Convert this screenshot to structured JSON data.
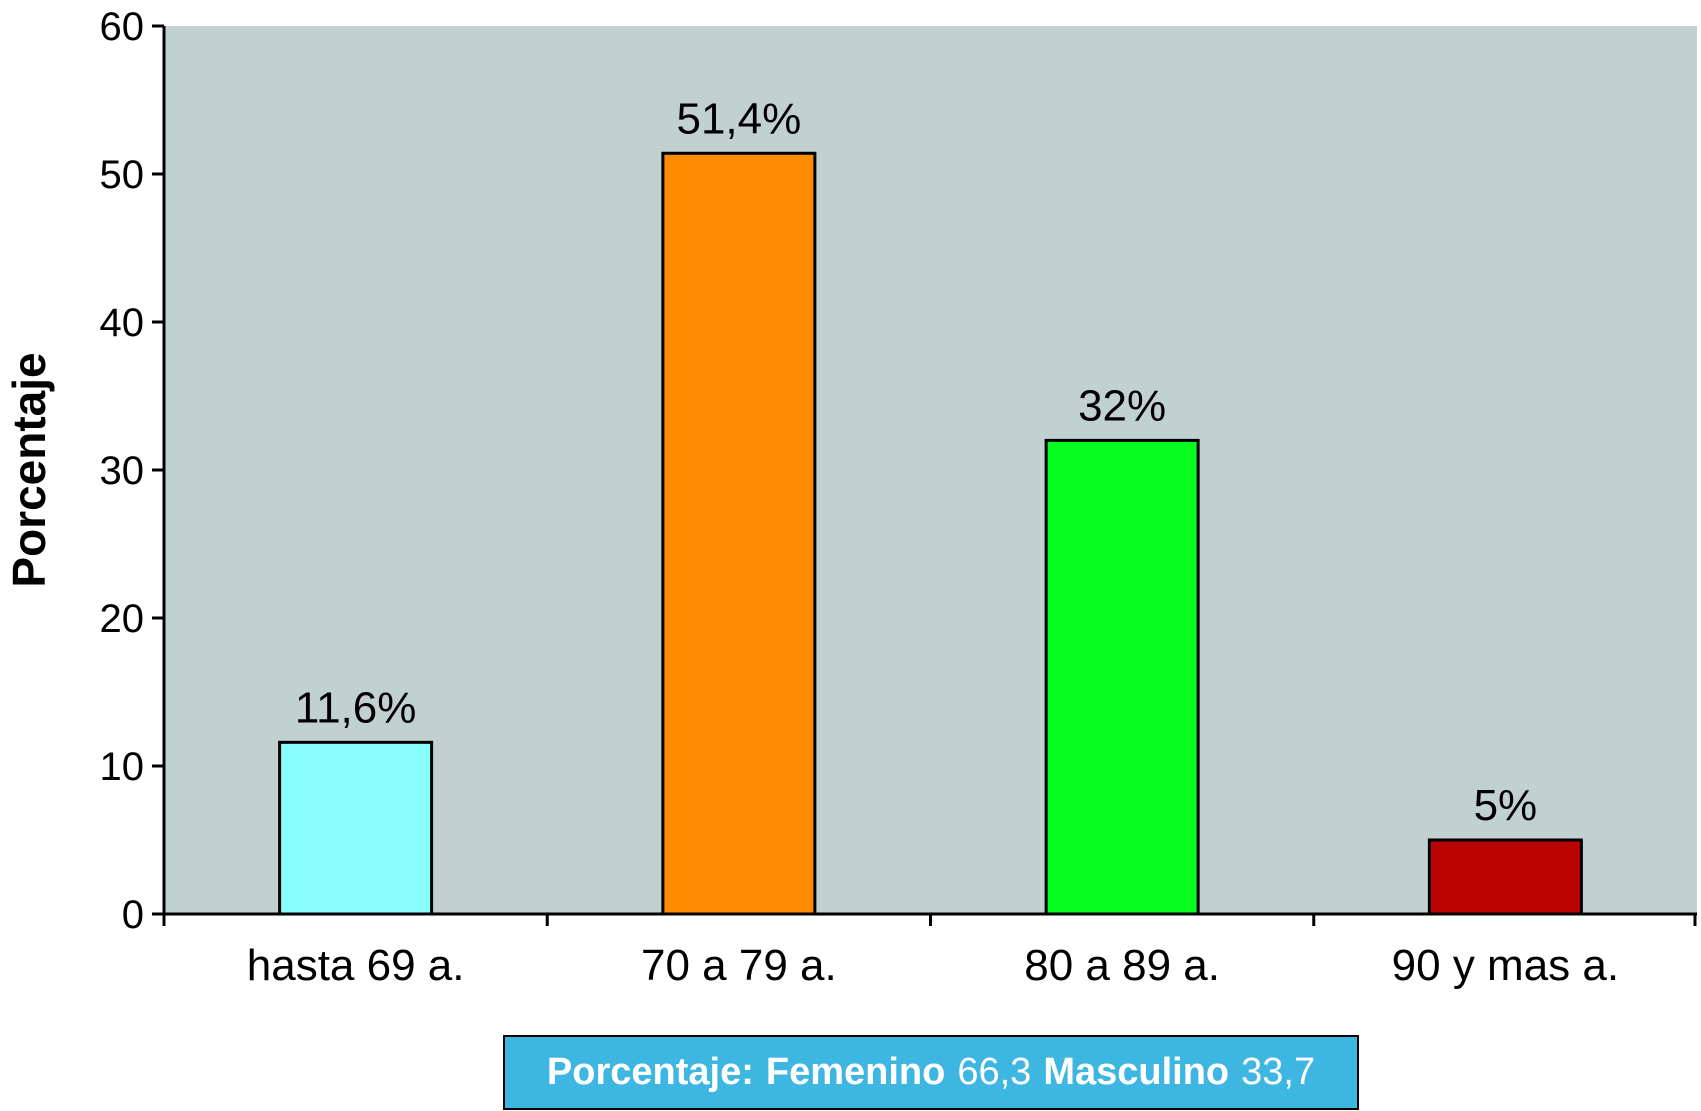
{
  "chart_data": {
    "type": "bar",
    "categories": [
      "hasta 69 a.",
      "70 a 79 a.",
      "80 a 89 a.",
      "90 y mas a."
    ],
    "values": [
      11.6,
      51.4,
      32,
      5
    ],
    "data_labels": [
      "11,6%",
      "51,4%",
      "32%",
      "5%"
    ],
    "bar_colors": [
      "#88FDFD",
      "#FF8C00",
      "#08FD20",
      "#BA0404"
    ],
    "ylabel": "Porcentaje",
    "xlabel": "",
    "ylim": [
      0,
      60
    ],
    "yticks": [
      0,
      10,
      20,
      30,
      40,
      50,
      60
    ],
    "plot_background": "#C1D1D0",
    "grid": false
  },
  "note_box": {
    "background": "#3DB6E2",
    "label_prefix": "Porcentaje:",
    "female_label": "Femenino",
    "female_value": "66,3",
    "male_label": "Masculino",
    "male_value": "33,7"
  }
}
